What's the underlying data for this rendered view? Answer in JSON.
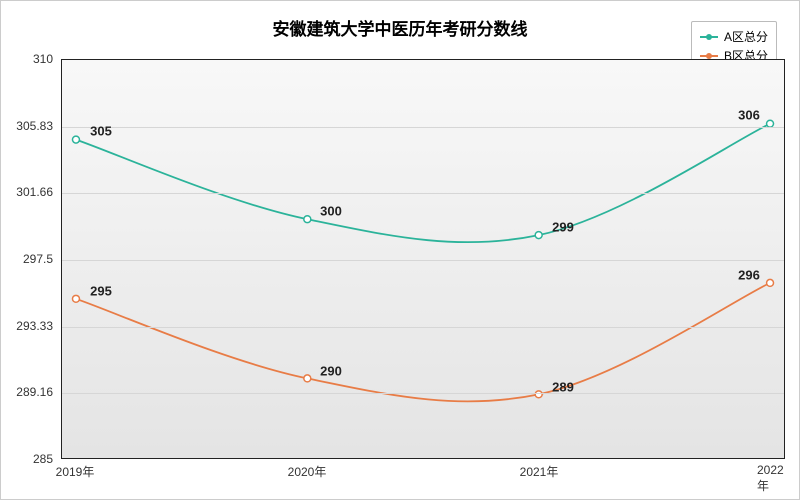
{
  "chart": {
    "title": "安徽建筑大学中医历年考研分数线",
    "title_fontsize": 17,
    "background_color": "#ffffff",
    "plot_bg_top": "#f8f8f8",
    "plot_bg_bottom": "#e4e4e4",
    "grid_color": "#d6d6d6",
    "border_color": "#222222",
    "type": "line",
    "x_categories": [
      "2019年",
      "2020年",
      "2021年",
      "2022年"
    ],
    "ylim": [
      285,
      310
    ],
    "y_ticks": [
      "285",
      "289.16",
      "293.33",
      "297.5",
      "301.66",
      "305.83",
      "310"
    ],
    "series": [
      {
        "name": "A区总分",
        "color": "#2bb39a",
        "values": [
          305,
          300,
          299,
          306
        ],
        "labels": [
          "305",
          "300",
          "299",
          "306"
        ]
      },
      {
        "name": "B区总分",
        "color": "#e87c46",
        "values": [
          295,
          290,
          289,
          296
        ],
        "labels": [
          "295",
          "290",
          "289",
          "296"
        ]
      }
    ],
    "label_fontsize": 13,
    "tick_fontsize": 12
  }
}
